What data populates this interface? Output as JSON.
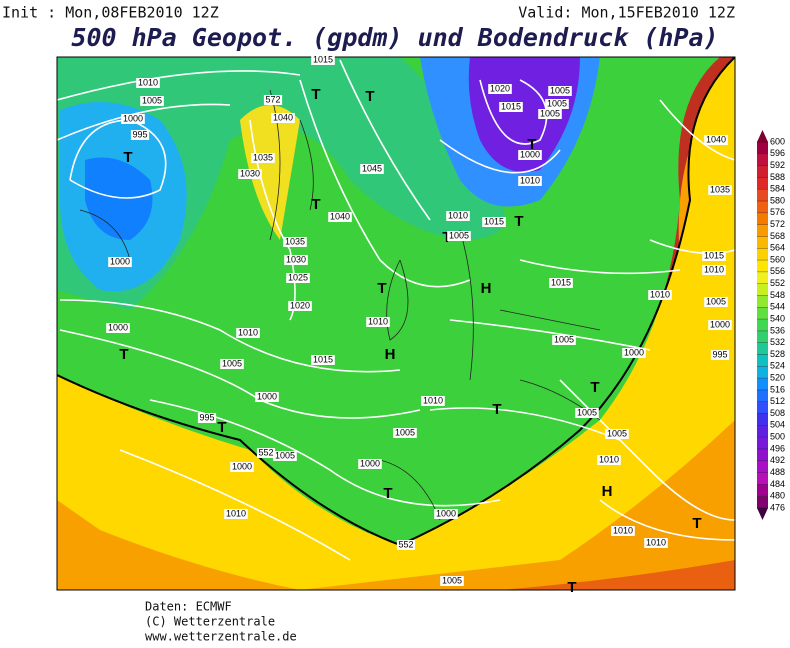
{
  "header": {
    "init": "Init : Mon,08FEB2010 12Z",
    "valid": "Valid: Mon,15FEB2010 12Z",
    "title": "500 hPa Geopot. (gpdm) und Bodendruck (hPa)"
  },
  "map_labels": [
    "1010",
    "1005",
    "1000",
    "995",
    "T",
    "1000",
    "572",
    "1040",
    "1035",
    "1030",
    "T",
    "T",
    "1045",
    "T",
    "1040",
    "1035",
    "1030",
    "1025",
    "1020",
    "T",
    "1010",
    "H",
    "H",
    "1015",
    "1010",
    "1005",
    "1000",
    "1000",
    "T",
    "995",
    "T",
    "1000",
    "1005",
    "1010",
    "1005",
    "1000",
    "T",
    "1000",
    "552",
    "1005",
    "T",
    "1010",
    "T",
    "1005",
    "1000",
    "T",
    "1005",
    "1005",
    "1010",
    "H",
    "1010",
    "1010",
    "T",
    "1010",
    "1015",
    "1015",
    "T",
    "T",
    "1005",
    "1010",
    "1010",
    "1020",
    "1015",
    "1005",
    "1005",
    "1005",
    "1000",
    "T",
    "1040",
    "1035",
    "1015",
    "1010",
    "1005",
    "1000",
    "995",
    "552",
    "1015"
  ],
  "colorbar": {
    "levels": [
      476,
      480,
      484,
      488,
      492,
      496,
      500,
      504,
      508,
      512,
      516,
      520,
      524,
      528,
      532,
      536,
      540,
      544,
      548,
      552,
      556,
      560,
      564,
      568,
      572,
      576,
      580,
      584,
      588,
      592,
      596,
      600
    ],
    "colors": [
      "#400040",
      "#800070",
      "#a00090",
      "#b810b8",
      "#a810c8",
      "#9010d0",
      "#7818d8",
      "#6020e0",
      "#4030f0",
      "#3050ff",
      "#2070ff",
      "#1090ff",
      "#10b0e0",
      "#10c0c0",
      "#20c898",
      "#30d070",
      "#40d850",
      "#60e040",
      "#90e830",
      "#c8f020",
      "#f0f020",
      "#ffe600",
      "#fdd000",
      "#fbb800",
      "#f89a00",
      "#f57a00",
      "#f06010",
      "#e84a20",
      "#e02828",
      "#d02030",
      "#c01040",
      "#a00040",
      "#800030"
    ]
  },
  "footer": [
    "Daten: ECMWF",
    "(C) Wetterzentrale",
    "www.wetterzentrale.de"
  ]
}
